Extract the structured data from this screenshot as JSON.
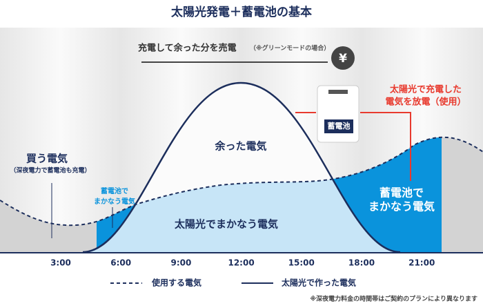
{
  "title": "太陽光発電＋蓄電池の基本",
  "sell": {
    "label": "充電して余った分を売電",
    "note": "（※グリーンモードの場合）",
    "icon": "¥"
  },
  "battery": {
    "label": "蓄電池"
  },
  "discharge": [
    "太陽光で充電した",
    "電気を放電（使用）"
  ],
  "surplus": "余った電気",
  "buy": {
    "label": "買う電気",
    "note": "（深夜電力で蓄電池も充電）"
  },
  "battery_morning": [
    "蓄電池で",
    "まかなう電気"
  ],
  "solar_covered": "太陽光でまかなう電気",
  "battery_evening": [
    "蓄電池で",
    "まかなう電気"
  ],
  "x_labels": [
    "3:00",
    "6:00",
    "9:00",
    "12:00",
    "15:00",
    "18:00",
    "21:00"
  ],
  "legend": [
    "使用する電気",
    "太陽光で作った電気"
  ],
  "footnote": "※深夜電力料金の時間帯はご契約のプランにより異なります"
}
